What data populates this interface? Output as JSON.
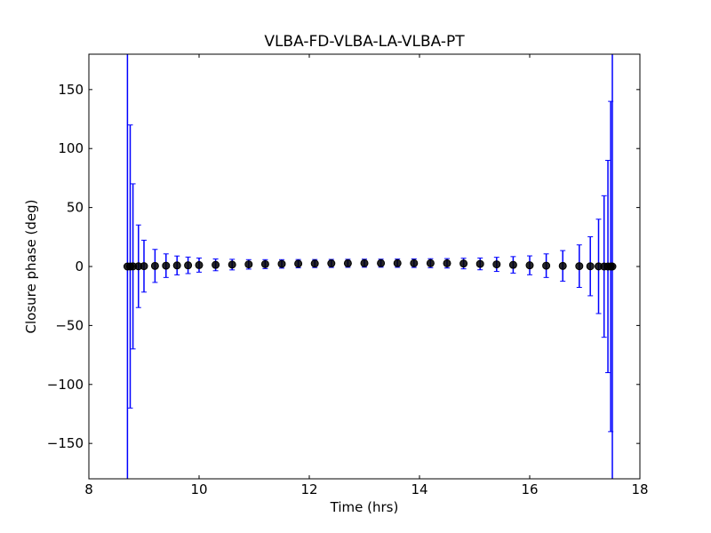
{
  "chart_data": {
    "type": "errorbar",
    "title": "VLBA-FD-VLBA-LA-VLBA-PT",
    "x_label": "Time (hrs)",
    "y_label": "Closure phase (deg)",
    "xlim": [
      8,
      18
    ],
    "xticks": [
      8,
      10,
      12,
      14,
      16,
      18
    ],
    "ylim": [
      -180,
      180
    ],
    "yticks": [
      {
        "value": -150,
        "label": "−150"
      },
      {
        "value": -100,
        "label": "−100"
      },
      {
        "value": -50,
        "label": "−50"
      },
      0,
      50,
      100,
      150
    ],
    "series": [
      {
        "color": "#0000ff",
        "marker_color": "#000000",
        "x": [
          8.7,
          8.75,
          8.8,
          8.9,
          9.0,
          9.2,
          9.4,
          9.6,
          9.8,
          10.0,
          10.3,
          10.6,
          10.9,
          11.2,
          11.5,
          11.8,
          12.1,
          12.4,
          12.7,
          13.0,
          13.3,
          13.6,
          13.9,
          14.2,
          14.5,
          14.8,
          15.1,
          15.4,
          15.7,
          16.0,
          16.3,
          16.6,
          16.9,
          17.1,
          17.25,
          17.35,
          17.42,
          17.47,
          17.5
        ],
        "values": [
          0,
          0,
          0.1,
          0.2,
          0.3,
          0.5,
          0.7,
          0.9,
          1.0,
          1.2,
          1.4,
          1.6,
          1.8,
          2.0,
          2.2,
          2.4,
          2.5,
          2.6,
          2.7,
          2.8,
          2.8,
          2.8,
          2.8,
          2.8,
          2.7,
          2.5,
          2.2,
          1.8,
          1.4,
          1.0,
          0.7,
          0.5,
          0.3,
          0.2,
          0.1,
          0,
          0,
          0,
          0
        ],
        "errors": [
          200,
          120,
          70,
          35,
          22,
          14,
          10,
          8,
          7,
          6,
          5,
          4.5,
          4,
          3.8,
          3.6,
          3.5,
          3.4,
          3.4,
          3.4,
          3.4,
          3.4,
          3.5,
          3.6,
          3.8,
          4,
          4.5,
          5,
          6,
          7,
          8,
          10,
          13,
          18,
          25,
          40,
          60,
          90,
          140,
          200
        ]
      }
    ]
  }
}
